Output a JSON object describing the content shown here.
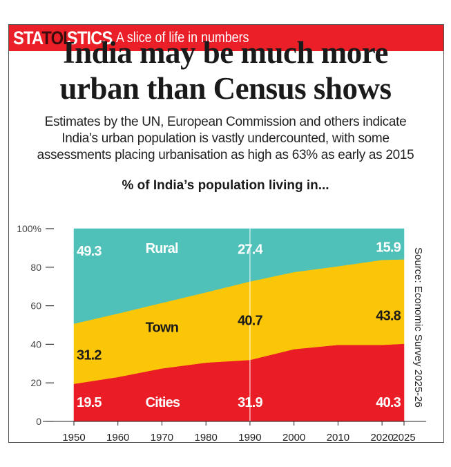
{
  "banner": {
    "brand_prefix": "STA",
    "brand_highlight": "TOI",
    "brand_suffix": "STICS",
    "tagline": "A slice of life in numbers"
  },
  "headline": {
    "line1": "India may be much more",
    "line2": "urban than Census shows"
  },
  "dek": {
    "line1": "Estimates by the UN, European Commission and others indicate",
    "line2": "India’s urban population is vastly undercounted, with some",
    "line3": "assessments placing urbanisation as high as 63% as early as 2015"
  },
  "source": "Source: Economic Survey 2025-26",
  "colors": {
    "banner": "#ea1f28",
    "cities": "#ea1c26",
    "town": "#fcc608",
    "rural": "#4fc1b8"
  },
  "chart_data": {
    "type": "area",
    "stacked": true,
    "title": "% of India’s population living in...",
    "xlabel": "",
    "ylabel": "",
    "x": [
      1950,
      1960,
      1970,
      1980,
      1990,
      2000,
      2010,
      2020,
      2025
    ],
    "xticks": [
      "1950",
      "1960",
      "1970",
      "1980",
      "1990",
      "2000",
      "2010",
      "2020",
      "2025"
    ],
    "yticks": [
      "0",
      "20",
      "40",
      "60",
      "80",
      "100%"
    ],
    "ylim": [
      0,
      100
    ],
    "grid": false,
    "reference_line_x": 1990,
    "series": [
      {
        "name": "Cities",
        "color": "#ea1c26",
        "values": [
          19.5,
          23.0,
          27.5,
          30.5,
          31.9,
          37.5,
          39.7,
          39.7,
          40.3
        ]
      },
      {
        "name": "Town",
        "color": "#fcc608",
        "values": [
          31.2,
          33.0,
          34.0,
          36.5,
          40.7,
          40.0,
          40.8,
          44.1,
          43.8
        ]
      },
      {
        "name": "Rural",
        "color": "#4fc1b8",
        "values": [
          49.3,
          44.0,
          38.5,
          33.0,
          27.4,
          22.5,
          19.5,
          16.2,
          15.9
        ]
      }
    ],
    "series_labels": [
      {
        "text": "Rural",
        "series": "Rural",
        "x": 1965,
        "y": 90,
        "color": "#ffffff"
      },
      {
        "text": "Town",
        "series": "Town",
        "x": 1965,
        "y": 49,
        "color": "#1a1a1a"
      },
      {
        "text": "Cities",
        "series": "Cities",
        "x": 1965,
        "y": 10,
        "color": "#ffffff"
      }
    ],
    "data_labels": [
      {
        "text": "49.3",
        "x": 1950,
        "y": 88.5,
        "color": "#ffffff",
        "anchor": "start"
      },
      {
        "text": "31.2",
        "x": 1950,
        "y": 34.5,
        "color": "#1a1a1a",
        "anchor": "start"
      },
      {
        "text": "19.5",
        "x": 1950,
        "y": 10,
        "color": "#ffffff",
        "anchor": "start"
      },
      {
        "text": "27.4",
        "x": 1990,
        "y": 89.5,
        "color": "#ffffff",
        "anchor": "middle"
      },
      {
        "text": "40.7",
        "x": 1990,
        "y": 52.5,
        "color": "#1a1a1a",
        "anchor": "middle"
      },
      {
        "text": "31.9",
        "x": 1990,
        "y": 10,
        "color": "#ffffff",
        "anchor": "middle"
      },
      {
        "text": "15.9",
        "x": 2025,
        "y": 90.5,
        "color": "#ffffff",
        "anchor": "end"
      },
      {
        "text": "43.8",
        "x": 2025,
        "y": 55,
        "color": "#1a1a1a",
        "anchor": "end"
      },
      {
        "text": "40.3",
        "x": 2025,
        "y": 10,
        "color": "#ffffff",
        "anchor": "end"
      }
    ]
  }
}
